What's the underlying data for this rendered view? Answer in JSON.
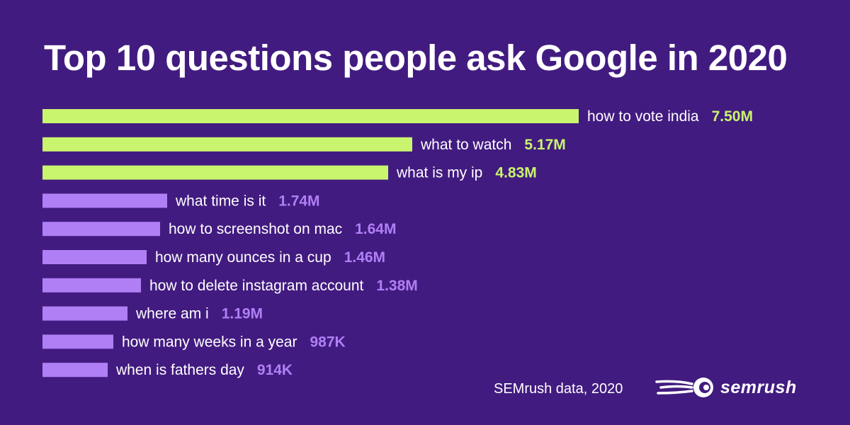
{
  "chart_data": {
    "type": "bar",
    "orientation": "horizontal",
    "title": "Top 10 questions people ask Google in 2020",
    "categories": [
      "how to vote india",
      "what to watch",
      "what is my ip",
      "what time is it",
      "how to screenshot on mac",
      "how many ounces in a cup",
      "how to delete instagram account",
      "where am i",
      "how many weeks in a year",
      "when is fathers day"
    ],
    "values": [
      7500000,
      5170000,
      4830000,
      1740000,
      1640000,
      1460000,
      1380000,
      1190000,
      987000,
      914000
    ],
    "value_labels": [
      "7.50M",
      "5.17M",
      "4.83M",
      "1.74M",
      "1.64M",
      "1.46M",
      "1.38M",
      "1.19M",
      "987K",
      "914K"
    ],
    "xlabel": "",
    "ylabel": "",
    "grid": false,
    "legend": "none"
  },
  "colors": {
    "background": "#421b80",
    "highlight_bar": "#c9f56e",
    "regular_bar": "#b07ff5",
    "text": "#ffffff"
  },
  "highlight_count": 3,
  "footer": {
    "source": "SEMrush data, 2020",
    "brand": "semrush",
    "brand_icon": "semrush-fireball-icon"
  }
}
